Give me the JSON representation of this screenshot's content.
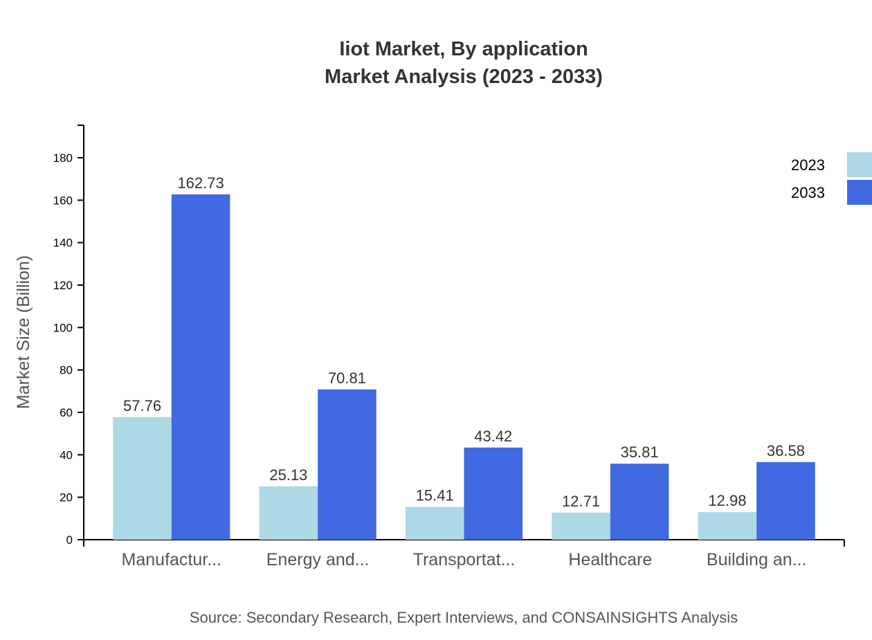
{
  "chart_data": {
    "type": "bar",
    "title": "Iiot Market, By application",
    "subtitle": "Market Analysis (2023 - 2033)",
    "ylabel": "Market Size (Billion)",
    "xlabel": "",
    "ylim": [
      0,
      195
    ],
    "yticks": [
      0,
      20,
      40,
      60,
      80,
      100,
      120,
      140,
      160,
      180
    ],
    "categories": [
      "Manufactur...",
      "Energy and...",
      "Transportat...",
      "Healthcare",
      "Building an..."
    ],
    "series": [
      {
        "name": "2023",
        "color": "#add8e6",
        "values": [
          57.76,
          25.13,
          15.41,
          12.71,
          12.98
        ]
      },
      {
        "name": "2033",
        "color": "#4169e1",
        "values": [
          162.73,
          70.81,
          43.42,
          35.81,
          36.58
        ]
      }
    ],
    "legend_position": "top-right",
    "grid": false,
    "source": "Source: Secondary Research, Expert Interviews, and CONSAINSIGHTS Analysis"
  }
}
